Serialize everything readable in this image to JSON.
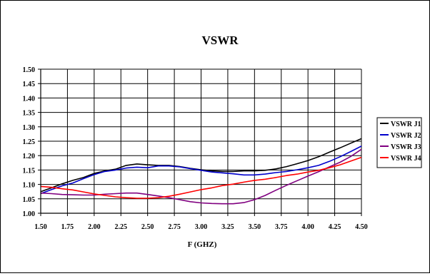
{
  "chart_data": {
    "type": "line",
    "title": "VSWR",
    "xlabel": "F (GHZ)",
    "ylabel": "",
    "xlim": [
      1.5,
      4.5
    ],
    "ylim": [
      1.0,
      1.5
    ],
    "grid": true,
    "legend_position": "right",
    "x_ticks": [
      "1.50",
      "1.75",
      "2.00",
      "2.25",
      "2.50",
      "2.75",
      "3.00",
      "3.25",
      "3.50",
      "3.75",
      "4.00",
      "4.25",
      "4.50"
    ],
    "y_ticks": [
      "1.00",
      "1.05",
      "1.10",
      "1.15",
      "1.20",
      "1.25",
      "1.30",
      "1.35",
      "1.40",
      "1.45",
      "1.50"
    ],
    "x": [
      1.5,
      1.6,
      1.7,
      1.8,
      1.9,
      2.0,
      2.1,
      2.2,
      2.3,
      2.4,
      2.5,
      2.6,
      2.7,
      2.8,
      2.9,
      3.0,
      3.1,
      3.2,
      3.3,
      3.4,
      3.5,
      3.6,
      3.7,
      3.8,
      3.9,
      4.0,
      4.1,
      4.2,
      4.3,
      4.4,
      4.5
    ],
    "series": [
      {
        "name": "VSWR J1",
        "color": "#000000",
        "values": [
          1.075,
          1.088,
          1.102,
          1.114,
          1.124,
          1.138,
          1.147,
          1.153,
          1.166,
          1.171,
          1.168,
          1.166,
          1.166,
          1.162,
          1.156,
          1.151,
          1.147,
          1.145,
          1.145,
          1.147,
          1.147,
          1.149,
          1.154,
          1.162,
          1.172,
          1.183,
          1.196,
          1.212,
          1.227,
          1.243,
          1.259
        ]
      },
      {
        "name": "VSWR J2",
        "color": "#0000cc",
        "values": [
          1.068,
          1.082,
          1.095,
          1.105,
          1.12,
          1.134,
          1.145,
          1.15,
          1.157,
          1.16,
          1.158,
          1.164,
          1.164,
          1.161,
          1.155,
          1.149,
          1.143,
          1.14,
          1.137,
          1.133,
          1.133,
          1.136,
          1.141,
          1.145,
          1.151,
          1.158,
          1.166,
          1.18,
          1.196,
          1.214,
          1.233
        ]
      },
      {
        "name": "VSWR J3",
        "color": "#800080",
        "values": [
          1.07,
          1.068,
          1.065,
          1.064,
          1.063,
          1.063,
          1.066,
          1.068,
          1.07,
          1.07,
          1.065,
          1.06,
          1.054,
          1.047,
          1.04,
          1.036,
          1.034,
          1.033,
          1.033,
          1.037,
          1.047,
          1.062,
          1.08,
          1.097,
          1.113,
          1.129,
          1.144,
          1.161,
          1.177,
          1.197,
          1.222
        ]
      },
      {
        "name": "VSWR J4",
        "color": "#ff0000",
        "values": [
          1.093,
          1.09,
          1.085,
          1.081,
          1.074,
          1.067,
          1.062,
          1.057,
          1.054,
          1.052,
          1.052,
          1.054,
          1.059,
          1.066,
          1.074,
          1.082,
          1.088,
          1.096,
          1.101,
          1.108,
          1.114,
          1.118,
          1.124,
          1.131,
          1.136,
          1.143,
          1.149,
          1.158,
          1.168,
          1.181,
          1.194
        ]
      }
    ]
  }
}
